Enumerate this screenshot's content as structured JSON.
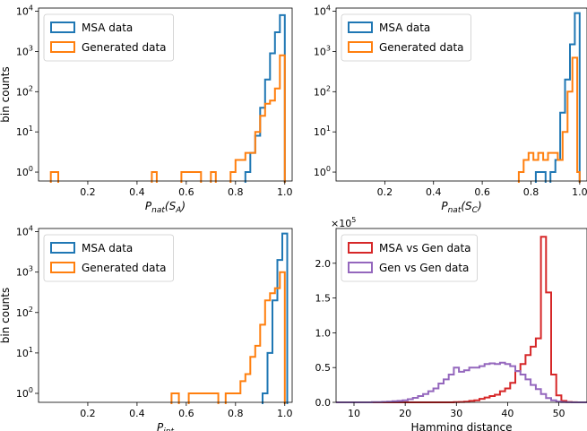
{
  "colors": {
    "msa": "#1f77b4",
    "generated": "#ff7f0e",
    "msa_vs_gen": "#d62728",
    "gen_vs_gen": "#9467bd"
  },
  "chart_data": [
    {
      "type": "histogram",
      "panel": "top-left",
      "xlabel": "P_nat(S_A)",
      "xlabel_parts": {
        "main": "P",
        "sub": "nat",
        "arg": "(S",
        "argsub": "A",
        "close": ")"
      },
      "ylabel": "bin counts",
      "yscale": "log",
      "xlim": [
        0.0,
        1.03
      ],
      "ylim": [
        0.6,
        12000
      ],
      "xticks": [
        0.2,
        0.4,
        0.6,
        0.8,
        1.0
      ],
      "xtick_labels": [
        "0.2",
        "0.4",
        "0.6",
        "0.8",
        "1.0"
      ],
      "yticks": [
        1,
        10,
        100,
        1000,
        10000
      ],
      "ytick_labels": [
        "10⁰",
        "10¹",
        "10²",
        "10³",
        "10⁴"
      ],
      "legend": {
        "position": "upper left",
        "entries": [
          {
            "label": "MSA data",
            "series": 0
          },
          {
            "label": "Generated data",
            "series": 1
          }
        ]
      },
      "series": [
        {
          "name": "MSA data",
          "color": "#1f77b4",
          "bins": [
            [
              0.84,
              0.86,
              1
            ],
            [
              0.86,
              0.88,
              3
            ],
            [
              0.88,
              0.9,
              8
            ],
            [
              0.9,
              0.92,
              40
            ],
            [
              0.92,
              0.94,
              200
            ],
            [
              0.94,
              0.96,
              900
            ],
            [
              0.96,
              0.98,
              3000
            ],
            [
              0.98,
              1.0,
              8000
            ]
          ]
        },
        {
          "name": "Generated data",
          "color": "#ff7f0e",
          "bins": [
            [
              0.05,
              0.08,
              1
            ],
            [
              0.46,
              0.48,
              1
            ],
            [
              0.58,
              0.66,
              1
            ],
            [
              0.7,
              0.72,
              1
            ],
            [
              0.78,
              0.8,
              1
            ],
            [
              0.8,
              0.82,
              2
            ],
            [
              0.82,
              0.84,
              2
            ],
            [
              0.84,
              0.86,
              3
            ],
            [
              0.86,
              0.88,
              3
            ],
            [
              0.88,
              0.9,
              10
            ],
            [
              0.9,
              0.92,
              25
            ],
            [
              0.92,
              0.94,
              50
            ],
            [
              0.94,
              0.96,
              60
            ],
            [
              0.96,
              0.98,
              120
            ],
            [
              0.98,
              1.0,
              800
            ]
          ]
        }
      ]
    },
    {
      "type": "histogram",
      "panel": "top-right",
      "xlabel": "P_nat(S_C)",
      "xlabel_parts": {
        "main": "P",
        "sub": "nat",
        "arg": "(S",
        "argsub": "C",
        "close": ")"
      },
      "ylabel": "",
      "yscale": "log",
      "xlim": [
        0.0,
        1.03
      ],
      "ylim": [
        0.6,
        12000
      ],
      "xticks": [
        0.2,
        0.4,
        0.6,
        0.8,
        1.0
      ],
      "xtick_labels": [
        "0.2",
        "0.4",
        "0.6",
        "0.8",
        "1.0"
      ],
      "yticks": [
        1,
        10,
        100,
        1000,
        10000
      ],
      "ytick_labels": [
        "10⁰",
        "10¹",
        "10²",
        "10³",
        "10⁴"
      ],
      "legend": {
        "position": "upper left",
        "entries": [
          {
            "label": "MSA data",
            "series": 0
          },
          {
            "label": "Generated data",
            "series": 1
          }
        ]
      },
      "series": [
        {
          "name": "MSA data",
          "color": "#1f77b4",
          "bins": [
            [
              0.82,
              0.84,
              1
            ],
            [
              0.84,
              0.86,
              1
            ],
            [
              0.88,
              0.9,
              1
            ],
            [
              0.9,
              0.92,
              2
            ],
            [
              0.92,
              0.94,
              30
            ],
            [
              0.94,
              0.96,
              200
            ],
            [
              0.96,
              0.98,
              1500
            ],
            [
              0.98,
              1.0,
              9000
            ]
          ]
        },
        {
          "name": "Generated data",
          "color": "#ff7f0e",
          "bins": [
            [
              0.75,
              0.77,
              1
            ],
            [
              0.77,
              0.79,
              2
            ],
            [
              0.79,
              0.81,
              3
            ],
            [
              0.81,
              0.83,
              2
            ],
            [
              0.83,
              0.85,
              3
            ],
            [
              0.85,
              0.87,
              2
            ],
            [
              0.87,
              0.89,
              3
            ],
            [
              0.89,
              0.91,
              3
            ],
            [
              0.91,
              0.93,
              2
            ],
            [
              0.93,
              0.95,
              10
            ],
            [
              0.95,
              0.97,
              100
            ],
            [
              0.97,
              0.99,
              700
            ],
            [
              0.99,
              1.0,
              1
            ]
          ]
        }
      ]
    },
    {
      "type": "histogram",
      "panel": "bottom-left",
      "xlabel": "P_int",
      "xlabel_parts": {
        "main": "P",
        "sub": "int",
        "arg": "",
        "argsub": "",
        "close": ""
      },
      "ylabel": "bin counts",
      "yscale": "log",
      "xlim": [
        0.0,
        1.03
      ],
      "ylim": [
        0.6,
        12000
      ],
      "xticks": [
        0.2,
        0.4,
        0.6,
        0.8,
        1.0
      ],
      "xtick_labels": [
        "0.2",
        "0.4",
        "0.6",
        "0.8",
        "1.0"
      ],
      "yticks": [
        1,
        10,
        100,
        1000,
        10000
      ],
      "ytick_labels": [
        "10⁰",
        "10¹",
        "10²",
        "10³",
        "10⁴"
      ],
      "legend": {
        "position": "upper left",
        "entries": [
          {
            "label": "MSA data",
            "series": 0
          },
          {
            "label": "Generated data",
            "series": 1
          }
        ]
      },
      "series": [
        {
          "name": "MSA data",
          "color": "#1f77b4",
          "bins": [
            [
              0.91,
              0.93,
              1
            ],
            [
              0.93,
              0.95,
              10
            ],
            [
              0.95,
              0.97,
              200
            ],
            [
              0.97,
              0.99,
              2000
            ],
            [
              0.99,
              1.01,
              9000
            ]
          ]
        },
        {
          "name": "Generated data",
          "color": "#ff7f0e",
          "bins": [
            [
              0.54,
              0.57,
              1
            ],
            [
              0.61,
              0.63,
              1
            ],
            [
              0.63,
              0.73,
              1
            ],
            [
              0.76,
              0.78,
              1
            ],
            [
              0.78,
              0.82,
              1
            ],
            [
              0.82,
              0.84,
              2
            ],
            [
              0.84,
              0.86,
              3
            ],
            [
              0.86,
              0.88,
              8
            ],
            [
              0.88,
              0.9,
              15
            ],
            [
              0.9,
              0.92,
              50
            ],
            [
              0.92,
              0.94,
              200
            ],
            [
              0.94,
              0.96,
              300
            ],
            [
              0.96,
              0.98,
              400
            ],
            [
              0.98,
              1.0,
              1000
            ]
          ]
        }
      ]
    },
    {
      "type": "histogram",
      "panel": "bottom-right",
      "xlabel": "Hamming distance",
      "ylabel": "",
      "yscale": "linear",
      "multiplier_label": "×10⁵",
      "xlim": [
        6.5,
        55.5
      ],
      "ylim": [
        0,
        2.5
      ],
      "xticks": [
        10,
        20,
        30,
        40,
        50
      ],
      "xtick_labels": [
        "10",
        "20",
        "30",
        "40",
        "50"
      ],
      "yticks": [
        0,
        0.5,
        1.0,
        1.5,
        2.0
      ],
      "ytick_labels": [
        "0.0",
        "0.5",
        "1.0",
        "1.5",
        "2.0"
      ],
      "legend": {
        "position": "upper left",
        "entries": [
          {
            "label": "MSA vs Gen data",
            "series": 0
          },
          {
            "label": "Gen vs Gen data",
            "series": 1
          }
        ]
      },
      "series": [
        {
          "name": "MSA vs Gen data",
          "color": "#d62728",
          "edges_start": 6.5,
          "bin_width": 1,
          "values": [
            0,
            0,
            0,
            0,
            0,
            0,
            0,
            0,
            0,
            0,
            0,
            0,
            0,
            0,
            0,
            0,
            0,
            0,
            0,
            0,
            0,
            0,
            0,
            0.002,
            0.005,
            0.01,
            0.02,
            0.03,
            0.05,
            0.07,
            0.09,
            0.11,
            0.16,
            0.2,
            0.28,
            0.45,
            0.55,
            0.68,
            0.8,
            0.92,
            2.38,
            1.58,
            0.4,
            0.1,
            0.02,
            0.005,
            0.001,
            0,
            0
          ]
        },
        {
          "name": "Gen vs Gen data",
          "color": "#9467bd",
          "edges_start": 6.5,
          "bin_width": 1,
          "values": [
            0,
            0,
            0,
            0,
            0,
            0,
            0,
            0.002,
            0.004,
            0.006,
            0.01,
            0.015,
            0.02,
            0.03,
            0.045,
            0.065,
            0.09,
            0.12,
            0.16,
            0.2,
            0.27,
            0.33,
            0.4,
            0.5,
            0.44,
            0.46,
            0.5,
            0.5,
            0.52,
            0.55,
            0.56,
            0.55,
            0.57,
            0.55,
            0.52,
            0.45,
            0.4,
            0.33,
            0.25,
            0.19,
            0.12,
            0.06,
            0.03,
            0.01,
            0.003,
            0.001,
            0,
            0,
            0
          ]
        }
      ]
    }
  ]
}
